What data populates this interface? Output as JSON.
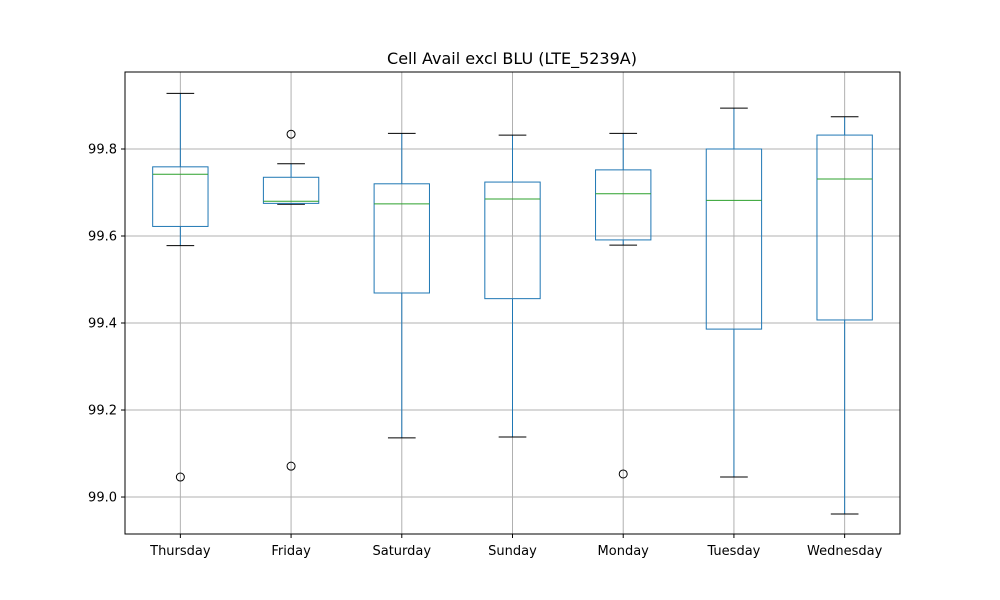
{
  "chart_data": {
    "type": "box",
    "title": "Cell Avail excl BLU (LTE_5239A)",
    "xlabel": "",
    "ylabel": "",
    "categories": [
      "Thursday",
      "Friday",
      "Saturday",
      "Sunday",
      "Monday",
      "Tuesday",
      "Wednesday"
    ],
    "ylim": [
      98.915,
      99.977
    ],
    "yticks": [
      "99.0",
      "99.2",
      "99.4",
      "99.6",
      "99.8"
    ],
    "grid": true,
    "colors": {
      "box": "#1f77b4",
      "median": "#2ca02c",
      "whisker": "#1f77b4",
      "cap": "#000000",
      "flier": "#000000",
      "grid": "#b0b0b0"
    },
    "boxes": [
      {
        "name": "Thursday",
        "whislo": 99.578,
        "q1": 99.622,
        "med": 99.742,
        "q3": 99.759,
        "whishi": 99.928,
        "fliers": [
          99.046
        ]
      },
      {
        "name": "Friday",
        "whislo": 99.673,
        "q1": 99.675,
        "med": 99.68,
        "q3": 99.735,
        "whishi": 99.766,
        "fliers": [
          99.834,
          99.071
        ]
      },
      {
        "name": "Saturday",
        "whislo": 99.136,
        "q1": 99.469,
        "med": 99.674,
        "q3": 99.72,
        "whishi": 99.836,
        "fliers": []
      },
      {
        "name": "Sunday",
        "whislo": 99.138,
        "q1": 99.456,
        "med": 99.685,
        "q3": 99.724,
        "whishi": 99.832,
        "fliers": []
      },
      {
        "name": "Monday",
        "whislo": 99.579,
        "q1": 99.591,
        "med": 99.697,
        "q3": 99.752,
        "whishi": 99.836,
        "fliers": [
          99.053
        ]
      },
      {
        "name": "Tuesday",
        "whislo": 99.046,
        "q1": 99.386,
        "med": 99.682,
        "q3": 99.8,
        "whishi": 99.894,
        "fliers": []
      },
      {
        "name": "Wednesday",
        "whislo": 98.961,
        "q1": 99.407,
        "med": 99.731,
        "q3": 99.832,
        "whishi": 99.874,
        "fliers": []
      }
    ]
  }
}
